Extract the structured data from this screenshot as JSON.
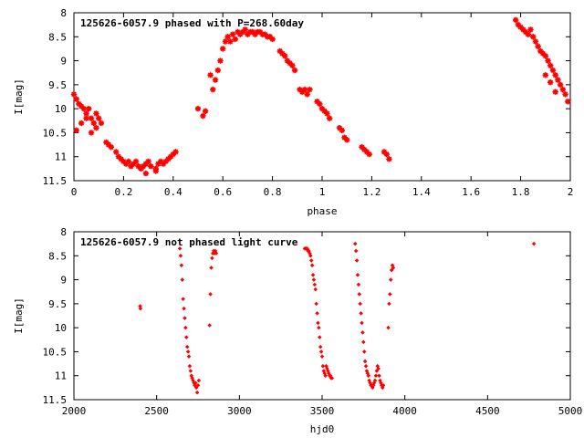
{
  "chart_data": [
    {
      "type": "scatter",
      "title": "125626-6057.9 phased with P=268.60day",
      "xlabel": "phase",
      "ylabel": "I[mag]",
      "xlim": [
        0,
        2
      ],
      "ylim": [
        11.5,
        8
      ],
      "y_inverted": true,
      "xticks": [
        "0",
        "0.2",
        "0.4",
        "0.6",
        "0.8",
        "1",
        "1.2",
        "1.4",
        "1.6",
        "1.8",
        "2"
      ],
      "yticks": [
        "8",
        "8.5",
        "9",
        "9.5",
        "10",
        "10.5",
        "11",
        "11.5"
      ],
      "marker_color": "#ff0000",
      "marker": "star",
      "series": [
        {
          "x": [
            0.0,
            0.01,
            0.02,
            0.03,
            0.04,
            0.05,
            0.06,
            0.07,
            0.08,
            0.09,
            0.1,
            0.11,
            0.13,
            0.14,
            0.15,
            0.17,
            0.18,
            0.19,
            0.2,
            0.21,
            0.22,
            0.23,
            0.24,
            0.25,
            0.26,
            0.27,
            0.28,
            0.29,
            0.3,
            0.31,
            0.33,
            0.34,
            0.35,
            0.36,
            0.37,
            0.38,
            0.39,
            0.4,
            0.41,
            0.01,
            0.03,
            0.05,
            0.07,
            0.09,
            0.29,
            0.33,
            0.5,
            0.52,
            0.53,
            0.55,
            0.56,
            0.57,
            0.58,
            0.59,
            0.6,
            0.61,
            0.62,
            0.63,
            0.64,
            0.65,
            0.66,
            0.67,
            0.68,
            0.69,
            0.7,
            0.71,
            0.72,
            0.73,
            0.74,
            0.75,
            0.76,
            0.77,
            0.78,
            0.79,
            0.8,
            0.83,
            0.84,
            0.85,
            0.86,
            0.87,
            0.88,
            0.89,
            0.91,
            0.92,
            0.93,
            0.94,
            0.95,
            0.98,
            0.99,
            1.0,
            1.01,
            1.02,
            1.03,
            1.07,
            1.08,
            1.09,
            1.1,
            1.16,
            1.17,
            1.18,
            1.19,
            1.25,
            1.26,
            1.27,
            1.78,
            1.79,
            1.8,
            1.81,
            1.82,
            1.83,
            1.84,
            1.85,
            1.86,
            1.87,
            1.88,
            1.89,
            1.9,
            1.91,
            1.92,
            1.93,
            1.94,
            1.95,
            1.96,
            1.97,
            1.98,
            1.99,
            1.9,
            1.92,
            1.94
          ],
          "y": [
            9.7,
            9.8,
            9.9,
            9.95,
            10.0,
            10.1,
            10.0,
            10.2,
            10.3,
            10.1,
            10.2,
            10.3,
            10.7,
            10.75,
            10.8,
            10.9,
            11.0,
            11.05,
            11.1,
            11.15,
            11.1,
            11.2,
            11.15,
            11.1,
            11.2,
            11.25,
            11.2,
            11.15,
            11.1,
            11.2,
            11.25,
            11.15,
            11.1,
            11.15,
            11.1,
            11.05,
            11.0,
            10.95,
            10.9,
            10.45,
            10.3,
            10.2,
            10.5,
            10.4,
            11.35,
            11.3,
            10.0,
            10.15,
            10.05,
            9.3,
            9.6,
            9.4,
            9.2,
            9.0,
            8.75,
            8.6,
            8.5,
            8.6,
            8.45,
            8.55,
            8.4,
            8.45,
            8.4,
            8.35,
            8.45,
            8.4,
            8.4,
            8.45,
            8.4,
            8.4,
            8.45,
            8.45,
            8.5,
            8.5,
            8.55,
            8.8,
            8.85,
            8.9,
            9.0,
            9.05,
            9.1,
            9.2,
            9.6,
            9.65,
            9.6,
            9.7,
            9.6,
            9.85,
            9.9,
            10.0,
            10.05,
            10.1,
            10.2,
            10.4,
            10.45,
            10.6,
            10.65,
            10.8,
            10.85,
            10.9,
            10.95,
            10.9,
            10.95,
            11.05,
            8.15,
            8.25,
            8.3,
            8.35,
            8.4,
            8.45,
            8.35,
            8.5,
            8.6,
            8.7,
            8.8,
            8.85,
            8.9,
            9.0,
            9.1,
            9.2,
            9.3,
            9.4,
            9.5,
            9.6,
            9.7,
            9.85,
            9.3,
            9.45,
            9.65
          ]
        }
      ]
    },
    {
      "type": "scatter",
      "title": "125626-6057.9 not phased light curve",
      "xlabel": "hjd0",
      "ylabel": "I[mag]",
      "xlim": [
        2000,
        5000
      ],
      "ylim": [
        11.5,
        8
      ],
      "y_inverted": true,
      "xticks": [
        "2000",
        "2500",
        "3000",
        "3500",
        "4000",
        "4500",
        "5000"
      ],
      "yticks": [
        "8",
        "8.5",
        "9",
        "9.5",
        "10",
        "10.5",
        "11",
        "11.5"
      ],
      "marker_color": "#ff0000",
      "marker": "diamond",
      "series": [
        {
          "x": [
            2400,
            2402,
            2640,
            2645,
            2650,
            2655,
            2660,
            2665,
            2670,
            2675,
            2680,
            2685,
            2690,
            2695,
            2700,
            2705,
            2710,
            2715,
            2720,
            2725,
            2730,
            2735,
            2740,
            2745,
            2750,
            2755,
            2820,
            2825,
            2830,
            2835,
            2840,
            2845,
            2850,
            2855,
            2860,
            3395,
            3400,
            3405,
            3410,
            3415,
            3420,
            3425,
            3430,
            3435,
            3440,
            3445,
            3450,
            3455,
            3460,
            3465,
            3470,
            3475,
            3480,
            3485,
            3490,
            3495,
            3500,
            3505,
            3510,
            3515,
            3520,
            3525,
            3530,
            3535,
            3540,
            3545,
            3550,
            3555,
            3560,
            3700,
            3705,
            3710,
            3715,
            3720,
            3725,
            3730,
            3735,
            3740,
            3745,
            3750,
            3755,
            3760,
            3765,
            3770,
            3775,
            3780,
            3785,
            3790,
            3795,
            3800,
            3805,
            3810,
            3815,
            3820,
            3825,
            3830,
            3835,
            3840,
            3845,
            3850,
            3855,
            3860,
            3865,
            3870,
            3900,
            3905,
            3910,
            3915,
            3920,
            3925,
            3930,
            4780
          ],
          "y": [
            9.55,
            9.6,
            8.35,
            8.5,
            8.7,
            9.0,
            9.4,
            9.6,
            9.8,
            10.0,
            10.2,
            10.4,
            10.5,
            10.6,
            10.8,
            10.9,
            11.0,
            11.05,
            11.1,
            11.15,
            11.2,
            11.15,
            11.25,
            11.35,
            11.2,
            11.1,
            9.95,
            9.3,
            8.75,
            8.55,
            8.45,
            8.4,
            8.45,
            8.4,
            8.45,
            8.35,
            8.35,
            8.35,
            8.35,
            8.4,
            8.4,
            8.45,
            8.5,
            8.6,
            8.7,
            8.9,
            9.0,
            9.1,
            9.2,
            9.5,
            9.7,
            9.9,
            10.0,
            10.2,
            10.4,
            10.5,
            10.6,
            10.8,
            10.9,
            10.95,
            11.0,
            10.8,
            10.85,
            10.9,
            10.95,
            11.0,
            11.0,
            11.05,
            11.05,
            8.25,
            8.4,
            8.6,
            8.9,
            9.1,
            9.3,
            9.5,
            9.7,
            9.9,
            10.1,
            10.3,
            10.5,
            10.7,
            10.8,
            10.9,
            10.95,
            11.0,
            11.1,
            11.15,
            11.2,
            11.2,
            11.25,
            11.2,
            11.15,
            11.1,
            11.0,
            10.9,
            10.8,
            10.85,
            11.0,
            11.1,
            11.15,
            11.2,
            11.25,
            11.2,
            10.0,
            9.5,
            9.3,
            9.0,
            8.8,
            8.7,
            8.75,
            8.25
          ]
        }
      ]
    }
  ]
}
